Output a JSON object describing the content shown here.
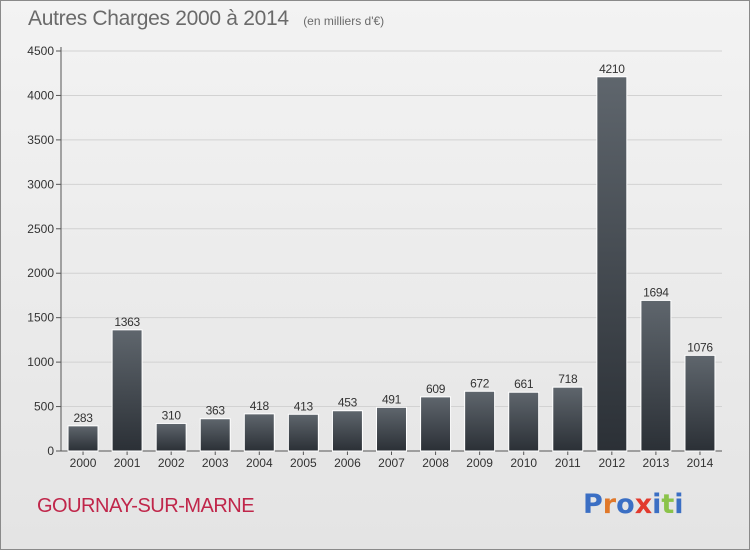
{
  "chart_data": {
    "type": "bar",
    "title": "Autres Charges 2000 à 2014",
    "subtitle": "(en milliers d'€)",
    "categories": [
      "2000",
      "2001",
      "2002",
      "2003",
      "2004",
      "2005",
      "2006",
      "2007",
      "2008",
      "2009",
      "2010",
      "2011",
      "2012",
      "2013",
      "2014"
    ],
    "values": [
      283,
      1363,
      310,
      363,
      418,
      413,
      453,
      491,
      609,
      672,
      661,
      718,
      4210,
      1694,
      1076
    ],
    "ylim": [
      0,
      4500
    ],
    "yticks": [
      0,
      500,
      1000,
      1500,
      2000,
      2500,
      3000,
      3500,
      4000,
      4500
    ],
    "grid": true,
    "xlabel": "",
    "ylabel": ""
  },
  "footer": {
    "city": "GOURNAY-SUR-MARNE",
    "brand": "Proxiti"
  },
  "colors": {
    "bar_dark": "#2b3036",
    "bar_light": "#5f666d",
    "grid": "#d2d2d2",
    "axis": "#555555",
    "city": "#c0264a",
    "brand_letters": [
      "#3b6fc4",
      "#e0782a",
      "#3b6fc4",
      "#e23a2e",
      "#3b6fc4",
      "#8bc34a",
      "#3b6fc4"
    ]
  }
}
